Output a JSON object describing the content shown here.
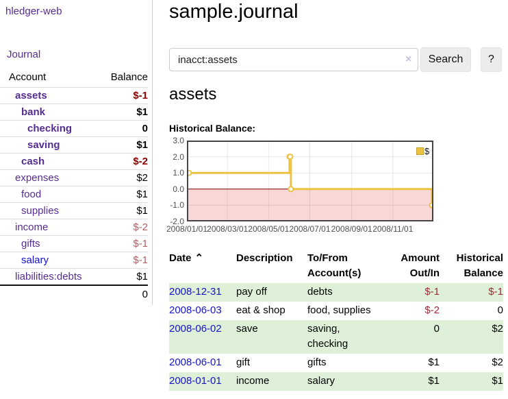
{
  "colors": {
    "link_purple": "#552d90",
    "link_blue": "#1414cc",
    "negative_bold": "#8b0000",
    "negative": "#a02c35",
    "negative_muted": "#b25d63",
    "row_green": "#dff0d8",
    "chart_line": "#edc240",
    "chart_negative_bg": "#f9d7d7",
    "zero_line": "#800000"
  },
  "sidebar": {
    "app_title": "hledger-web",
    "journal_label": "Journal",
    "table": {
      "account_header": "Account",
      "balance_header": "Balance",
      "rows": [
        {
          "name": "assets",
          "balance": "$-1"
        },
        {
          "name": "bank",
          "balance": "$1"
        },
        {
          "name": "checking",
          "balance": "0"
        },
        {
          "name": "saving",
          "balance": "$1"
        },
        {
          "name": "cash",
          "balance": "$-2"
        },
        {
          "name": "expenses",
          "balance": "$2"
        },
        {
          "name": "food",
          "balance": "$1"
        },
        {
          "name": "supplies",
          "balance": "$1"
        },
        {
          "name": "income",
          "balance": "$-2"
        },
        {
          "name": "gifts",
          "balance": "$-1"
        },
        {
          "name": "salary",
          "balance": "$-1"
        },
        {
          "name": "liabilities:debts",
          "balance": "$1"
        }
      ],
      "total": "0"
    }
  },
  "main": {
    "title": "sample.journal",
    "search": {
      "value": "inacct:assets",
      "clear_icon": "×",
      "search_label": "Search",
      "help_label": "?"
    },
    "account_heading": "assets",
    "chart_label": "Historical Balance:",
    "register": {
      "headers": {
        "date": "Date",
        "sort_icon": "⌃",
        "description": "Description",
        "tofrom_line1": "To/From",
        "tofrom_line2": "Account(s)",
        "amount_line1": "Amount",
        "amount_line2": "Out/In",
        "balance_line1": "Historical",
        "balance_line2": "Balance"
      },
      "rows": [
        {
          "date": "2008-12-31",
          "description": "pay off",
          "accounts": "debts",
          "amount": "$-1",
          "balance": "$-1"
        },
        {
          "date": "2008-06-03",
          "description": "eat & shop",
          "accounts": "food, supplies",
          "amount": "$-2",
          "balance": "0"
        },
        {
          "date": "2008-06-02",
          "description": "save",
          "accounts": "saving, checking",
          "amount": "0",
          "balance": "$2"
        },
        {
          "date": "2008-06-01",
          "description": "gift",
          "accounts": "gifts",
          "amount": "$1",
          "balance": "$2"
        },
        {
          "date": "2008-01-01",
          "description": "income",
          "accounts": "salary",
          "amount": "$1",
          "balance": "$1"
        }
      ]
    }
  },
  "chart_data": {
    "type": "line",
    "title": "Historical Balance",
    "step": true,
    "x": [
      "2008-01-01",
      "2008-06-01",
      "2008-06-02",
      "2008-06-03",
      "2008-12-31"
    ],
    "values": [
      1,
      2,
      2,
      0,
      -1
    ],
    "x_range": [
      "2008-01-01",
      "2008-12-31"
    ],
    "ylim": [
      -2,
      3
    ],
    "y_ticks": [
      "3.0",
      "2.0",
      "1.0",
      "0.0",
      "-1.0",
      "-2.0"
    ],
    "x_ticks": [
      "2008/01/01",
      "2008/03/01",
      "2008/05/01",
      "2008/07/01",
      "2008/09/01",
      "2008/11/01"
    ],
    "grid": true,
    "legend_position": "top-right",
    "legend": [
      {
        "label": "$",
        "color": "#edc240"
      }
    ]
  }
}
